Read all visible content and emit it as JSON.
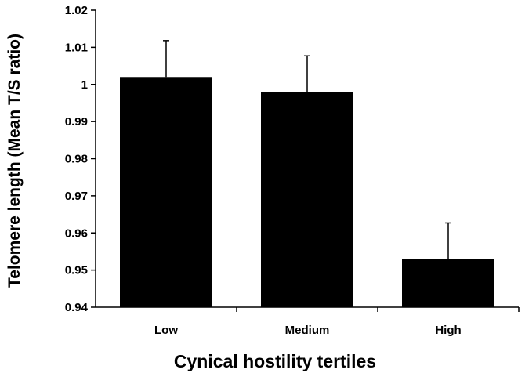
{
  "chart_data": {
    "type": "bar",
    "title": "",
    "xlabel": "Cynical hostility tertiles",
    "ylabel": "Telomere length (Mean T/S ratio)",
    "categories": [
      "Low",
      "Medium",
      "High"
    ],
    "values": [
      1.002,
      0.998,
      0.953
    ],
    "error_plus": [
      0.0098,
      0.0097,
      0.0097
    ],
    "ylim": [
      0.94,
      1.02
    ],
    "yticks": [
      "0.94",
      "0.95",
      "0.96",
      "0.97",
      "0.98",
      "0.99",
      "1",
      "1.01",
      "1.02"
    ],
    "grid": false,
    "legend": "none",
    "bar_color": "#000000",
    "axis_color": "#000000"
  }
}
